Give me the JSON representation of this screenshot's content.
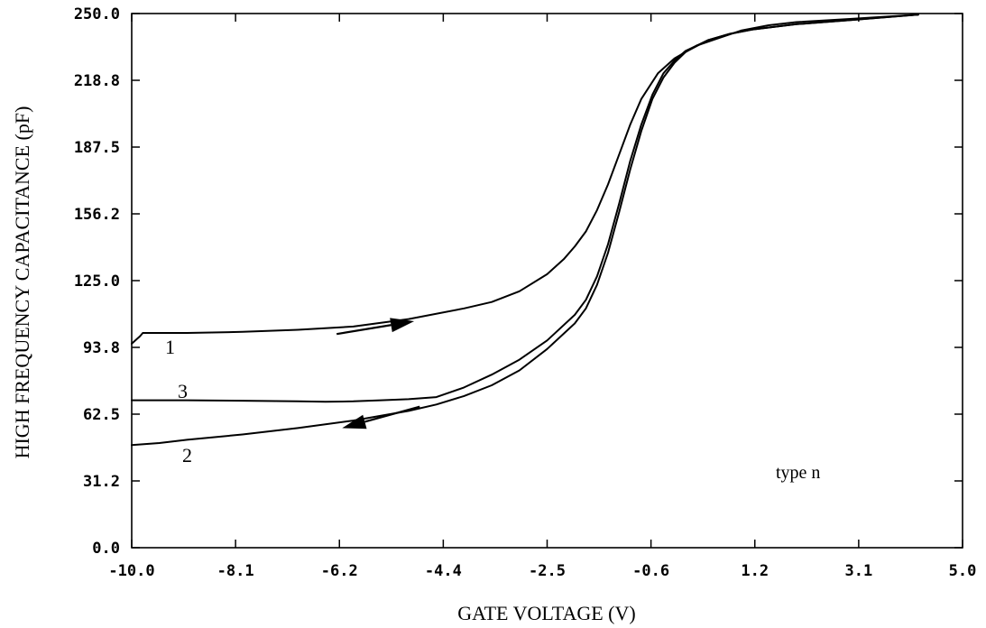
{
  "chart_data": {
    "type": "line",
    "title": "",
    "xlabel": "GATE VOLTAGE (V)",
    "ylabel": "HIGH FREQUENCY CAPACITANCE (pF)",
    "xlim": [
      -10.0,
      5.0
    ],
    "ylim": [
      0.0,
      250.0
    ],
    "x_ticks": [
      "-10.0",
      "-8.1",
      "-6.2",
      "-4.4",
      "-2.5",
      "-0.6",
      "1.2",
      "3.1",
      "5.0"
    ],
    "y_ticks": [
      "0.0",
      "31.2",
      "62.5",
      "93.8",
      "125.0",
      "156.2",
      "187.5",
      "218.8",
      "250.0"
    ],
    "grid": false,
    "series": [
      {
        "name": "1",
        "x": [
          -10.0,
          -9.85,
          -9.8,
          -9.5,
          -9.0,
          -8.0,
          -7.0,
          -6.0,
          -5.0,
          -4.0,
          -3.5,
          -3.0,
          -2.5,
          -2.2,
          -2.0,
          -1.8,
          -1.6,
          -1.4,
          -1.2,
          -1.0,
          -0.8,
          -0.5,
          -0.2,
          0.2,
          0.6,
          1.0,
          1.5,
          2.0,
          3.0,
          4.2
        ],
        "y": [
          95.5,
          99.0,
          100.5,
          100.5,
          100.5,
          101.0,
          102.0,
          103.5,
          107.0,
          112.0,
          115.0,
          120.0,
          128.0,
          135.0,
          141.0,
          148.0,
          158.0,
          170.0,
          184.0,
          198.0,
          210.0,
          222.0,
          229.0,
          235.0,
          238.5,
          242.0,
          244.5,
          246.0,
          247.5,
          249.5
        ]
      },
      {
        "name": "2",
        "x": [
          -10.0,
          -9.5,
          -9.0,
          -8.0,
          -7.0,
          -6.0,
          -5.0,
          -4.5,
          -4.0,
          -3.5,
          -3.0,
          -2.5,
          -2.0,
          -1.8,
          -1.6,
          -1.4,
          -1.2,
          -1.0,
          -0.8,
          -0.6,
          -0.4,
          -0.2,
          0.0,
          0.4,
          0.8,
          1.2,
          2.0,
          3.0,
          4.2
        ],
        "y": [
          48.0,
          49.0,
          50.5,
          53.0,
          56.0,
          59.5,
          64.0,
          67.0,
          71.0,
          76.0,
          83.0,
          93.0,
          105.0,
          112.0,
          123.0,
          138.0,
          157.0,
          177.0,
          195.0,
          210.0,
          220.0,
          227.0,
          232.0,
          237.5,
          240.5,
          242.5,
          245.0,
          247.0,
          249.5
        ]
      },
      {
        "name": "3",
        "x": [
          -10.0,
          -9.0,
          -8.0,
          -7.0,
          -6.5,
          -6.0,
          -5.5,
          -5.0,
          -4.5,
          -4.0,
          -3.5,
          -3.0,
          -2.5,
          -2.0,
          -1.8,
          -1.6,
          -1.4,
          -1.2,
          -1.0,
          -0.8,
          -0.6,
          -0.4,
          -0.2,
          0.0,
          0.4,
          0.8,
          1.2,
          2.0,
          3.0,
          4.2
        ],
        "y": [
          69.0,
          69.0,
          68.8,
          68.5,
          68.3,
          68.5,
          69.0,
          69.5,
          70.5,
          75.0,
          81.0,
          88.0,
          97.0,
          109.0,
          116.0,
          127.0,
          142.0,
          161.0,
          181.0,
          198.0,
          212.0,
          222.0,
          228.0,
          232.5,
          237.5,
          240.5,
          242.5,
          245.0,
          247.0,
          249.5
        ]
      }
    ],
    "annotations": {
      "curve_1_label": "1",
      "curve_2_label": "2",
      "curve_3_label": "3",
      "type_label": "type n"
    },
    "arrows": [
      {
        "from": [
          -6.3,
          100.0
        ],
        "to": [
          -4.9,
          106.0
        ],
        "meaning": "forward sweep"
      },
      {
        "from": [
          -4.8,
          66.0
        ],
        "to": [
          -6.2,
          56.0
        ],
        "meaning": "reverse sweep"
      }
    ]
  }
}
